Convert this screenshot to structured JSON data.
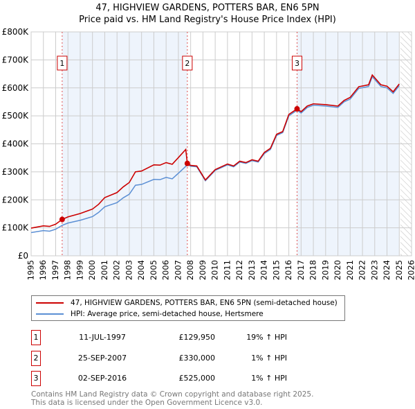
{
  "title_line1": "47, HIGHVIEW GARDENS, POTTERS BAR, EN6 5PN",
  "title_line2": "Price paid vs. HM Land Registry's House Price Index (HPI)",
  "chart_data": {
    "type": "line",
    "xlim": [
      1995,
      2026
    ],
    "ylim": [
      0,
      800000
    ],
    "x_ticks": [
      1995,
      1996,
      1997,
      1998,
      1999,
      2000,
      2001,
      2002,
      2003,
      2004,
      2005,
      2006,
      2007,
      2008,
      2009,
      2010,
      2011,
      2012,
      2013,
      2014,
      2015,
      2016,
      2017,
      2018,
      2019,
      2020,
      2021,
      2022,
      2023,
      2024,
      2025,
      2026
    ],
    "y_ticks": [
      {
        "v": 0,
        "label": "£0"
      },
      {
        "v": 100000,
        "label": "£100K"
      },
      {
        "v": 200000,
        "label": "£200K"
      },
      {
        "v": 300000,
        "label": "£300K"
      },
      {
        "v": 400000,
        "label": "£400K"
      },
      {
        "v": 500000,
        "label": "£500K"
      },
      {
        "v": 600000,
        "label": "£600K"
      },
      {
        "v": 700000,
        "label": "£700K"
      },
      {
        "v": 800000,
        "label": "£800K"
      }
    ],
    "grid": true,
    "shaded_periods": [
      [
        1997.53,
        2007.73
      ],
      [
        2016.67,
        2025.0
      ]
    ],
    "future_hatch_from": 2025.1,
    "series": [
      {
        "name": "47, HIGHVIEW GARDENS, POTTERS BAR, EN6 5PN (semi-detached house)",
        "color": "#cc0000",
        "x": [
          1995,
          1996,
          1996.5,
          1997,
          1997.53,
          1998,
          1999,
          2000,
          2000.5,
          2001,
          2002,
          2002.5,
          2003,
          2003.5,
          2004,
          2005,
          2005.5,
          2006,
          2006.5,
          2007,
          2007.6,
          2007.73,
          2008,
          2008.5,
          2009.2,
          2010,
          2011,
          2011.5,
          2012,
          2012.5,
          2013,
          2013.5,
          2014,
          2014.5,
          2015,
          2015.5,
          2016,
          2016.67,
          2017,
          2017.5,
          2018,
          2019,
          2020,
          2020.5,
          2021,
          2021.7,
          2022.5,
          2022.8,
          2023.5,
          2024,
          2024.5,
          2025
        ],
        "y": [
          99000,
          107000,
          105000,
          113000,
          129950,
          139000,
          151000,
          167000,
          184000,
          208000,
          226000,
          246000,
          262000,
          300000,
          303000,
          325000,
          324000,
          333000,
          327000,
          351000,
          380000,
          330000,
          323000,
          321000,
          271000,
          308000,
          328000,
          321000,
          338000,
          333000,
          343000,
          338000,
          369000,
          384000,
          434000,
          444000,
          505000,
          525000,
          515000,
          535000,
          543000,
          540000,
          535000,
          555000,
          566000,
          604000,
          611000,
          646000,
          611000,
          606000,
          586000,
          614000
        ]
      },
      {
        "name": "HPI: Average price, semi-detached house, Hertsmere",
        "color": "#5b8fd4",
        "x": [
          1995,
          1996,
          1996.5,
          1997,
          1997.53,
          1998,
          1999,
          2000,
          2000.5,
          2001,
          2002,
          2002.5,
          2003,
          2003.5,
          2004,
          2005,
          2005.5,
          2006,
          2006.5,
          2007,
          2007.73,
          2008,
          2008.5,
          2009.2,
          2010,
          2011,
          2011.5,
          2012,
          2012.5,
          2013,
          2013.5,
          2014,
          2014.5,
          2015,
          2015.5,
          2016,
          2016.67,
          2017,
          2017.5,
          2018,
          2019,
          2020,
          2020.5,
          2021,
          2021.7,
          2022.5,
          2022.8,
          2023.5,
          2024,
          2024.5,
          2025
        ],
        "y": [
          83000,
          90000,
          88000,
          95000,
          109000,
          117000,
          127000,
          140000,
          155000,
          175000,
          190000,
          207000,
          220000,
          252000,
          255000,
          273000,
          272000,
          280000,
          275000,
          295000,
          325000,
          320000,
          318000,
          268000,
          305000,
          325000,
          318000,
          335000,
          330000,
          340000,
          335000,
          365000,
          380000,
          430000,
          440000,
          500000,
          520000,
          510000,
          530000,
          538000,
          535000,
          530000,
          550000,
          560000,
          598000,
          605000,
          640000,
          605000,
          600000,
          580000,
          608000
        ]
      }
    ],
    "sales": [
      {
        "num": "1",
        "x": 1997.53,
        "price": 129950,
        "date": "11-JUL-1997",
        "price_label": "£129,950",
        "hpi": "19% ↑ HPI"
      },
      {
        "num": "2",
        "x": 2007.73,
        "price": 330000,
        "date": "25-SEP-2007",
        "price_label": "£330,000",
        "hpi": "1% ↑ HPI"
      },
      {
        "num": "3",
        "x": 2016.67,
        "price": 525000,
        "date": "02-SEP-2016",
        "price_label": "£525,000",
        "hpi": "1% ↑ HPI"
      }
    ]
  },
  "legend": {
    "red": "47, HIGHVIEW GARDENS, POTTERS BAR, EN6 5PN (semi-detached house)",
    "blue": "HPI: Average price, semi-detached house, Hertsmere"
  },
  "footer": {
    "line1": "Contains HM Land Registry data © Crown copyright and database right 2025.",
    "line2": "This data is licensed under the Open Government Licence v3.0."
  }
}
